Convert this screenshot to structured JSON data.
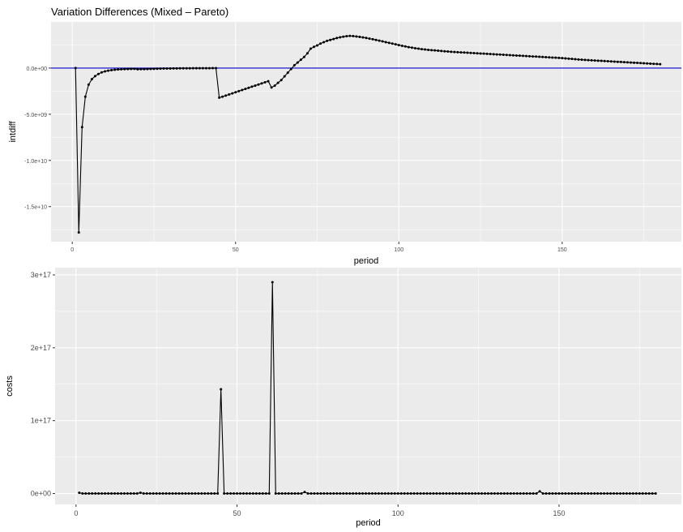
{
  "title": "Variation Differences (Mixed – Pareto)",
  "colors": {
    "panel_bg": "#ebebeb",
    "grid_major": "#ffffff",
    "line": "#000000",
    "ref_line": "#0000cc"
  },
  "chart_data": [
    {
      "type": "line",
      "title": "Variation Differences (Mixed – Pareto)",
      "xlabel": "period",
      "ylabel": "intdiff",
      "xlim": [
        -6.5,
        186.5
      ],
      "ylim": [
        -18800000000.0,
        5000000000.0
      ],
      "x_ticks": [
        0,
        50,
        100,
        150
      ],
      "x_tick_labels": [
        "0",
        "50",
        "100",
        "150"
      ],
      "y_ticks": [
        0,
        -5000000000.0,
        -10000000000.0,
        -15000000000.0
      ],
      "y_tick_labels": [
        "0.0e+00",
        "-5.0e+09",
        "-1.0e+10",
        "-1.5e+10"
      ],
      "hline": 0,
      "grid": true,
      "series": [
        {
          "x": [
            1,
            2,
            3,
            4,
            5,
            6,
            7,
            8,
            9,
            10,
            11,
            12,
            13,
            14,
            15,
            16,
            17,
            18,
            19,
            20,
            21,
            22,
            23,
            24,
            25,
            26,
            27,
            28,
            29,
            30,
            31,
            32,
            33,
            34,
            35,
            36,
            37,
            38,
            39,
            40,
            41,
            42,
            43,
            44,
            45,
            46,
            47,
            48,
            49,
            50,
            51,
            52,
            53,
            54,
            55,
            56,
            57,
            58,
            59,
            60,
            61,
            62,
            63,
            64,
            65,
            66,
            67,
            68,
            69,
            70,
            71,
            72,
            73,
            74,
            75,
            76,
            77,
            78,
            79,
            80,
            81,
            82,
            83,
            84,
            85,
            86,
            87,
            88,
            89,
            90,
            91,
            92,
            93,
            94,
            95,
            96,
            97,
            98,
            99,
            100,
            101,
            102,
            103,
            104,
            105,
            106,
            107,
            108,
            109,
            110,
            111,
            112,
            113,
            114,
            115,
            116,
            117,
            118,
            119,
            120,
            121,
            122,
            123,
            124,
            125,
            126,
            127,
            128,
            129,
            130,
            131,
            132,
            133,
            134,
            135,
            136,
            137,
            138,
            139,
            140,
            141,
            142,
            143,
            144,
            145,
            146,
            147,
            148,
            149,
            150,
            151,
            152,
            153,
            154,
            155,
            156,
            157,
            158,
            159,
            160,
            161,
            162,
            163,
            164,
            165,
            166,
            167,
            168,
            169,
            170,
            171,
            172,
            173,
            174,
            175,
            176,
            177,
            178,
            179,
            180
          ],
          "values": [
            0,
            -17800000000.0,
            -6400000000.0,
            -3100000000.0,
            -1800000000.0,
            -1200000000.0,
            -870000000.0,
            -640000000.0,
            -470000000.0,
            -360000000.0,
            -280000000.0,
            -220000000.0,
            -180000000.0,
            -150000000.0,
            -130000000.0,
            -110000000.0,
            -100000000.0,
            -90000000.0,
            -80000000.0,
            -130000000.0,
            -120000000.0,
            -110000000.0,
            -100000000.0,
            -90000000.0,
            -80000000.0,
            -70000000.0,
            -60000000.0,
            -55000000.0,
            -50000000.0,
            -45000000.0,
            -40000000.0,
            -35000000.0,
            -30000000.0,
            -28000000.0,
            -26000000.0,
            -24000000.0,
            -22000000.0,
            -20000000.0,
            -18000000.0,
            -16000000.0,
            -14000000.0,
            -12000000.0,
            -10000000.0,
            -8000000.0,
            -3200000000.0,
            -3100000000.0,
            -2980000000.0,
            -2860000000.0,
            -2740000000.0,
            -2620000000.0,
            -2500000000.0,
            -2380000000.0,
            -2260000000.0,
            -2140000000.0,
            -2020000000.0,
            -1900000000.0,
            -1780000000.0,
            -1660000000.0,
            -1540000000.0,
            -1420000000.0,
            -2100000000.0,
            -1900000000.0,
            -1600000000.0,
            -1300000000.0,
            -900000000.0,
            -500000000.0,
            -100000000.0,
            300000000.0,
            600000000.0,
            900000000.0,
            1200000000.0,
            1600000000.0,
            2100000000.0,
            2300000000.0,
            2450000000.0,
            2650000000.0,
            2800000000.0,
            2950000000.0,
            3050000000.0,
            3150000000.0,
            3250000000.0,
            3330000000.0,
            3400000000.0,
            3450000000.0,
            3480000000.0,
            3460000000.0,
            3420000000.0,
            3370000000.0,
            3320000000.0,
            3260000000.0,
            3190000000.0,
            3120000000.0,
            3050000000.0,
            2970000000.0,
            2890000000.0,
            2810000000.0,
            2730000000.0,
            2650000000.0,
            2570000000.0,
            2490000000.0,
            2410000000.0,
            2340000000.0,
            2270000000.0,
            2210000000.0,
            2150000000.0,
            2100000000.0,
            2050000000.0,
            2010000000.0,
            1970000000.0,
            1940000000.0,
            1910000000.0,
            1880000000.0,
            1850000000.0,
            1820000000.0,
            1790000000.0,
            1760000000.0,
            1740000000.0,
            1720000000.0,
            1700000000.0,
            1680000000.0,
            1660000000.0,
            1640000000.0,
            1620000000.0,
            1600000000.0,
            1580000000.0,
            1560000000.0,
            1540000000.0,
            1520000000.0,
            1500000000.0,
            1480000000.0,
            1460000000.0,
            1440000000.0,
            1420000000.0,
            1400000000.0,
            1380000000.0,
            1360000000.0,
            1340000000.0,
            1320000000.0,
            1300000000.0,
            1280000000.0,
            1260000000.0,
            1240000000.0,
            1220000000.0,
            1200000000.0,
            1180000000.0,
            1160000000.0,
            1140000000.0,
            1120000000.0,
            1100000000.0,
            1080000000.0,
            1050000000.0,
            1020000000.0,
            990000000.0,
            960000000.0,
            930000000.0,
            900000000.0,
            880000000.0,
            860000000.0,
            840000000.0,
            820000000.0,
            800000000.0,
            780000000.0,
            760000000.0,
            740000000.0,
            720000000.0,
            700000000.0,
            680000000.0,
            660000000.0,
            640000000.0,
            620000000.0,
            600000000.0,
            580000000.0,
            560000000.0,
            540000000.0,
            520000000.0,
            500000000.0,
            480000000.0,
            460000000.0,
            440000000.0,
            420000000.0
          ]
        }
      ]
    },
    {
      "type": "line",
      "xlabel": "period",
      "ylabel": "costs",
      "xlim": [
        -6.5,
        188
      ],
      "ylim": [
        -1.5e+16,
        3.1e+17
      ],
      "x_ticks": [
        0,
        50,
        100,
        150
      ],
      "x_tick_labels": [
        "0",
        "50",
        "100",
        "150"
      ],
      "y_ticks": [
        0,
        1e+17,
        2e+17,
        3e+17
      ],
      "y_tick_labels": [
        "0e+00",
        "1e+17",
        "2e+17",
        "3e+17"
      ],
      "grid": true,
      "series": [
        {
          "x": [
            1,
            2,
            3,
            4,
            5,
            6,
            7,
            8,
            9,
            10,
            11,
            12,
            13,
            14,
            15,
            16,
            17,
            18,
            19,
            20,
            21,
            22,
            23,
            24,
            25,
            26,
            27,
            28,
            29,
            30,
            31,
            32,
            33,
            34,
            35,
            36,
            37,
            38,
            39,
            40,
            41,
            42,
            43,
            44,
            45,
            46,
            47,
            48,
            49,
            50,
            51,
            52,
            53,
            54,
            55,
            56,
            57,
            58,
            59,
            60,
            61,
            62,
            63,
            64,
            65,
            66,
            67,
            68,
            69,
            70,
            71,
            72,
            73,
            74,
            75,
            76,
            77,
            78,
            79,
            80,
            81,
            82,
            83,
            84,
            85,
            86,
            87,
            88,
            89,
            90,
            91,
            92,
            93,
            94,
            95,
            96,
            97,
            98,
            99,
            100,
            101,
            102,
            103,
            104,
            105,
            106,
            107,
            108,
            109,
            110,
            111,
            112,
            113,
            114,
            115,
            116,
            117,
            118,
            119,
            120,
            121,
            122,
            123,
            124,
            125,
            126,
            127,
            128,
            129,
            130,
            131,
            132,
            133,
            134,
            135,
            136,
            137,
            138,
            139,
            140,
            141,
            142,
            143,
            144,
            145,
            146,
            147,
            148,
            149,
            150,
            151,
            152,
            153,
            154,
            155,
            156,
            157,
            158,
            159,
            160,
            161,
            162,
            163,
            164,
            165,
            166,
            167,
            168,
            169,
            170,
            171,
            172,
            173,
            174,
            175,
            176,
            177,
            178,
            179,
            180
          ],
          "values": [
            1000000000000000.0,
            0,
            0,
            0,
            0,
            0,
            0,
            0,
            0,
            0,
            0,
            0,
            0,
            0,
            0,
            0,
            0,
            0,
            0,
            1000000000000000.0,
            0,
            0,
            0,
            0,
            0,
            0,
            0,
            0,
            0,
            0,
            0,
            0,
            0,
            0,
            0,
            0,
            0,
            0,
            0,
            0,
            0,
            0,
            0,
            0,
            1.43e+17,
            0,
            0,
            0,
            0,
            0,
            0,
            0,
            0,
            0,
            0,
            0,
            0,
            0,
            0,
            0,
            2.9e+17,
            0,
            0,
            0,
            0,
            0,
            0,
            0,
            0,
            0,
            2000000000000000.0,
            0,
            0,
            0,
            0,
            0,
            0,
            0,
            0,
            0,
            0,
            0,
            0,
            0,
            0,
            0,
            0,
            0,
            0,
            0,
            0,
            0,
            0,
            0,
            0,
            0,
            0,
            0,
            0,
            0,
            0,
            0,
            0,
            0,
            0,
            0,
            0,
            0,
            0,
            0,
            0,
            0,
            0,
            0,
            0,
            0,
            0,
            0,
            0,
            0,
            0,
            0,
            0,
            0,
            0,
            0,
            0,
            0,
            0,
            0,
            0,
            0,
            0,
            0,
            0,
            0,
            0,
            0,
            0,
            0,
            0,
            0,
            0,
            3000000000000000.0,
            0,
            0,
            0,
            0,
            0,
            0,
            0,
            0,
            0,
            0,
            0,
            0,
            0,
            0,
            0,
            0,
            0,
            0,
            0,
            0,
            0,
            0,
            0,
            0,
            0,
            0,
            0,
            0,
            0,
            0,
            0,
            0,
            0,
            0,
            0,
            0
          ]
        }
      ]
    }
  ]
}
